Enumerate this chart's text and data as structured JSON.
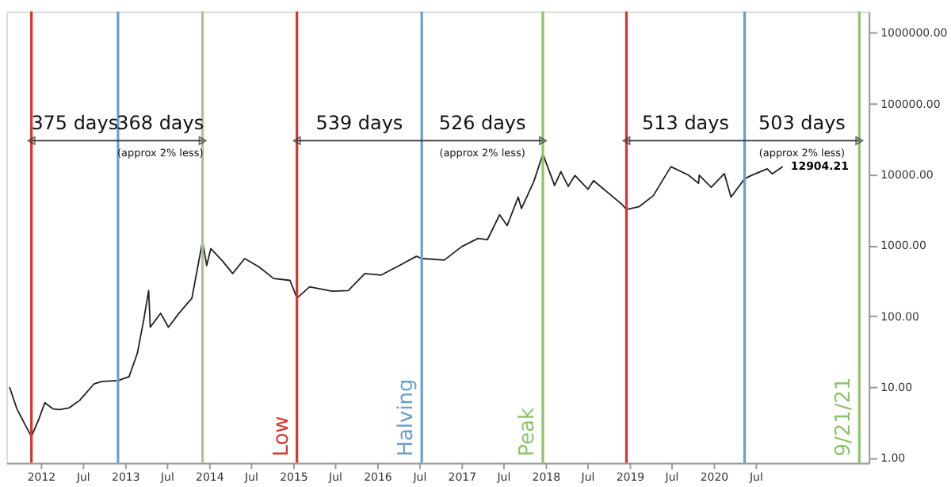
{
  "chart_data": {
    "type": "line",
    "log": true,
    "grid": false,
    "marker": "none",
    "line_style": "solid",
    "x": [
      "2011-08-15",
      "2011-09-15",
      "2011-10-20",
      "2011-11-18",
      "2011-12-20",
      "2012-01-15",
      "2012-02-20",
      "2012-03-20",
      "2012-05-01",
      "2012-06-15",
      "2012-08-15",
      "2012-09-20",
      "2012-11-28",
      "2013-01-15",
      "2013-02-20",
      "2013-03-20",
      "2013-04-10",
      "2013-04-17",
      "2013-06-01",
      "2013-07-05",
      "2013-08-20",
      "2013-10-15",
      "2013-11-30",
      "2013-12-18",
      "2014-01-05",
      "2014-02-25",
      "2014-04-10",
      "2014-06-01",
      "2014-08-01",
      "2014-10-05",
      "2014-12-15",
      "2015-01-14",
      "2015-03-10",
      "2015-06-15",
      "2015-08-25",
      "2015-11-05",
      "2016-01-15",
      "2016-06-16",
      "2016-07-09",
      "2016-10-15",
      "2016-12-30",
      "2017-03-10",
      "2017-04-20",
      "2017-06-12",
      "2017-07-15",
      "2017-09-01",
      "2017-09-15",
      "2017-11-08",
      "2017-12-17",
      "2018-02-06",
      "2018-03-05",
      "2018-04-06",
      "2018-05-05",
      "2018-07-01",
      "2018-07-25",
      "2018-11-25",
      "2018-12-15",
      "2019-02-07",
      "2019-04-10",
      "2019-06-26",
      "2019-09-10",
      "2019-10-24",
      "2019-10-27",
      "2019-12-18",
      "2020-02-13",
      "2020-03-13",
      "2020-05-11",
      "2020-06-10",
      "2020-08-17",
      "2020-09-08",
      "2020-10-24"
    ],
    "series": [
      {
        "color": "#222222",
        "values": [
          10,
          5,
          3,
          2,
          3.5,
          6,
          4.9,
          4.8,
          5.1,
          6.5,
          11,
          12,
          12.3,
          14,
          30,
          90,
          230,
          70,
          110,
          70,
          110,
          180,
          1150,
          520,
          900,
          600,
          400,
          650,
          500,
          340,
          320,
          180,
          260,
          225,
          230,
          400,
          380,
          700,
          650,
          620,
          960,
          1250,
          1200,
          2700,
          1900,
          4800,
          3300,
          8000,
          19500,
          7000,
          11000,
          6800,
          9700,
          6200,
          8200,
          3800,
          3200,
          3500,
          5000,
          12900,
          9800,
          7500,
          9800,
          6600,
          10300,
          4800,
          8700,
          9700,
          12000,
          10200,
          12904.21
        ]
      }
    ],
    "xlim": [
      "2011-08-01",
      "2021-11-01"
    ],
    "xticks": [
      {
        "value": "2012-01-01",
        "label": "2012"
      },
      {
        "value": "2012-07-01",
        "label": "Jul"
      },
      {
        "value": "2013-01-01",
        "label": "2013"
      },
      {
        "value": "2013-07-01",
        "label": "Jul"
      },
      {
        "value": "2014-01-01",
        "label": "2014"
      },
      {
        "value": "2014-07-01",
        "label": "Jul"
      },
      {
        "value": "2015-01-01",
        "label": "2015"
      },
      {
        "value": "2015-07-01",
        "label": "Jul"
      },
      {
        "value": "2016-01-01",
        "label": "2016"
      },
      {
        "value": "2016-07-01",
        "label": "Jul"
      },
      {
        "value": "2017-01-01",
        "label": "2017"
      },
      {
        "value": "2017-07-01",
        "label": "Jul"
      },
      {
        "value": "2018-01-01",
        "label": "2018"
      },
      {
        "value": "2018-07-01",
        "label": "Jul"
      },
      {
        "value": "2019-01-01",
        "label": "2019"
      },
      {
        "value": "2019-07-01",
        "label": "Jul"
      },
      {
        "value": "2020-01-01",
        "label": "2020"
      },
      {
        "value": "2020-07-01",
        "label": "Jul"
      }
    ],
    "ylim": [
      0.85,
      2000000
    ],
    "yticks": [
      {
        "value": 1,
        "label": "1.00"
      },
      {
        "value": 10,
        "label": "10.00"
      },
      {
        "value": 100,
        "label": "100.00"
      },
      {
        "value": 1000,
        "label": "1000.00"
      },
      {
        "value": 10000,
        "label": "10000.00"
      },
      {
        "value": 100000,
        "label": "100000.00"
      },
      {
        "value": 1000000,
        "label": "1000000.00"
      }
    ],
    "ref_lines": [
      {
        "axis": "x",
        "value": "2011-11-18",
        "label": null,
        "color": "#d9342b"
      },
      {
        "axis": "x",
        "value": "2012-11-28",
        "label": null,
        "color": "#6a9fc9"
      },
      {
        "axis": "x",
        "value": "2013-11-30",
        "label": null,
        "color": "#a9c28f"
      },
      {
        "axis": "x",
        "value": "2015-01-14",
        "label": "Low",
        "color": "#d9342b"
      },
      {
        "axis": "x",
        "value": "2016-07-09",
        "label": "Halving",
        "color": "#6a9fc9"
      },
      {
        "axis": "x",
        "value": "2017-12-17",
        "label": "Peak",
        "color": "#8dc46a"
      },
      {
        "axis": "x",
        "value": "2018-12-15",
        "label": null,
        "color": "#d9342b"
      },
      {
        "axis": "x",
        "value": "2020-05-11",
        "label": null,
        "color": "#6a9fc9"
      },
      {
        "axis": "x",
        "value": "2021-09-21",
        "label": "9/21/21",
        "color": "#8dc46a"
      }
    ],
    "annotations": [
      {
        "text": "375 days",
        "x": "2011-11-18",
        "y": 30000
      },
      {
        "text": "368 days",
        "x": "2013-11-30",
        "y": 30000
      },
      {
        "text": "539 days",
        "x": "2015-01-14",
        "y": 30000
      },
      {
        "text": "526 days",
        "x": "2017-12-17",
        "y": 30000
      },
      {
        "text": "513 days",
        "x": "2018-12-15",
        "y": 30000
      },
      {
        "text": "503 days",
        "x": "2021-09-21",
        "y": 30000
      },
      {
        "text": "(approx 2% less)",
        "x": "2013-11-30",
        "y": 20000
      },
      {
        "text": "(approx 2% less)",
        "x": "2017-12-17",
        "y": 20000
      },
      {
        "text": "(approx 2% less)",
        "x": "2021-09-21",
        "y": 20000
      },
      {
        "text": "12904.21",
        "x": "2020-10-24",
        "y": 12904.21
      }
    ]
  }
}
